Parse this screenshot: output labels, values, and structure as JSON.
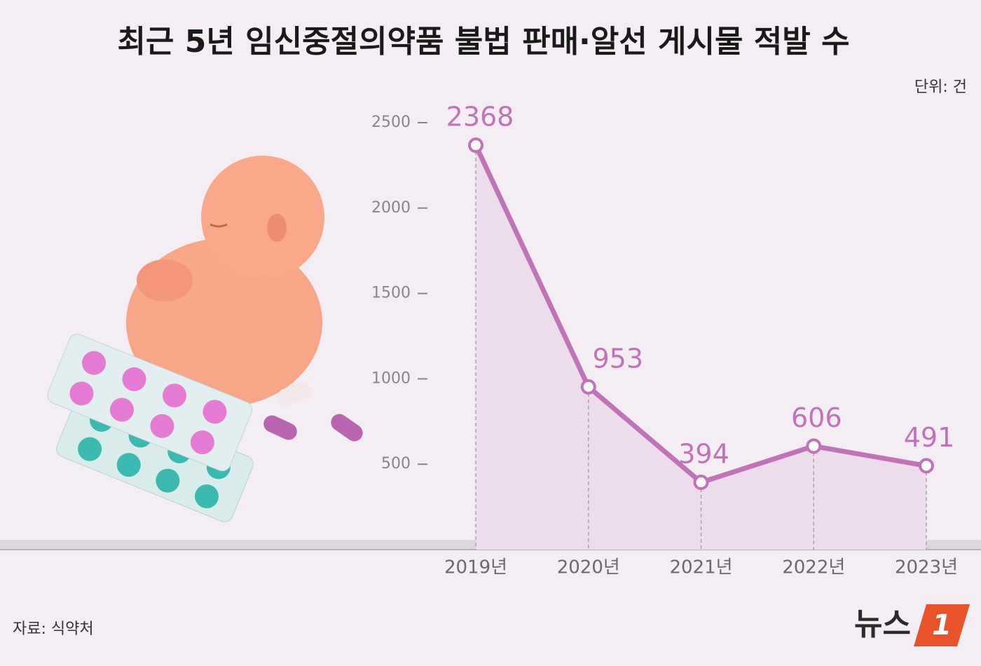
{
  "chart_data": {
    "type": "line",
    "title": "최근 5년 임신중절의약품 불법 판매·알선 게시물 적발 수",
    "unit": "단위: 건",
    "source": "자료: 식약처",
    "categories": [
      "2019년",
      "2020년",
      "2021년",
      "2022년",
      "2023년"
    ],
    "values": [
      2368,
      953,
      394,
      606,
      491
    ],
    "color": "#c173b8",
    "area_color": "#ecdcec",
    "ylim": [
      0,
      2500
    ],
    "yticks": [
      500,
      1000,
      1500,
      2000,
      2500
    ]
  },
  "logo": {
    "text": "뉴스",
    "mark": "1"
  }
}
